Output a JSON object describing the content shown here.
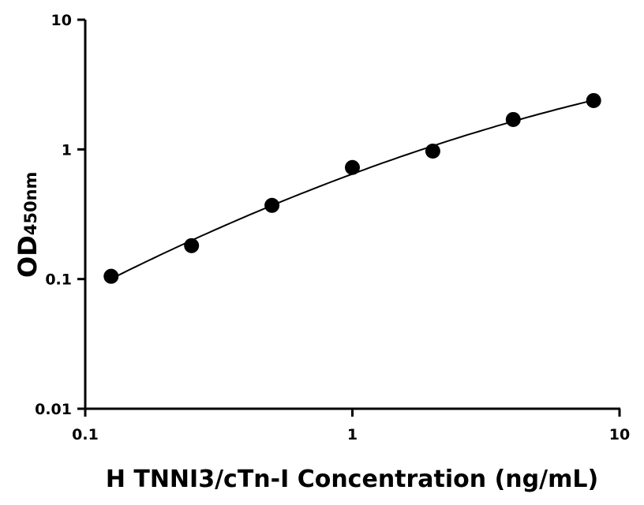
{
  "chart_data": {
    "type": "scatter",
    "xlabel": "H TNNI3/cTn-I Concentration (ng/mL)",
    "ylabel": "OD",
    "ylabel_subscript": "450nm",
    "x_scale": "log",
    "y_scale": "log",
    "xlim": [
      0.1,
      10
    ],
    "ylim": [
      0.01,
      10
    ],
    "x_ticks": [
      "0.1",
      "1",
      "10"
    ],
    "y_ticks": [
      "0.01",
      "0.1",
      "1",
      "10"
    ],
    "grid": false,
    "fit_curve": true,
    "colors": {
      "points": "#000000",
      "curve": "#000000"
    },
    "series": [
      {
        "x": [
          0.125,
          0.25,
          0.5,
          1,
          2,
          4,
          8
        ],
        "y": [
          0.105,
          0.181,
          0.37,
          0.725,
          0.97,
          1.7,
          2.38
        ]
      }
    ]
  }
}
